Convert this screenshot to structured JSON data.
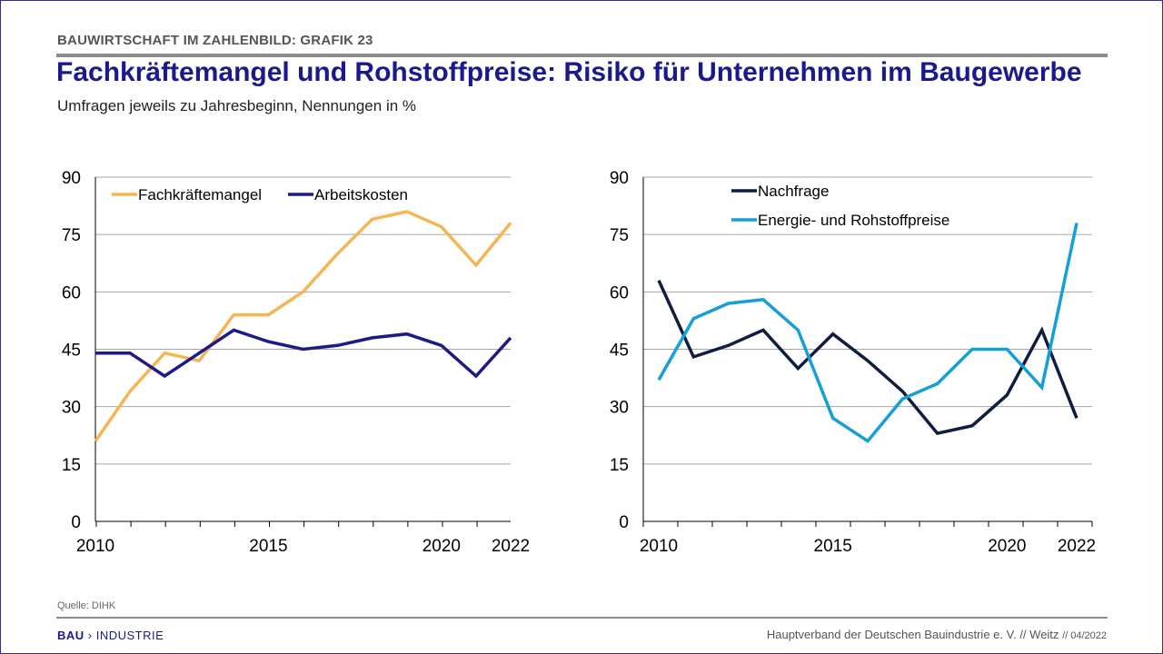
{
  "header": {
    "kicker": "BAUWIRTSCHAFT IM ZAHLENBILD: GRAFIK 23",
    "title": "Fachkräftemangel und Rohstoffpreise: Risiko für Unternehmen im Baugewerbe",
    "subtitle": "Umfragen jeweils zu Jahresbeginn, Nennungen in %"
  },
  "footer": {
    "source": "Quelle: DIHK",
    "logo_bold": "BAU",
    "logo_rest": "INDUSTRIE",
    "publisher": "Hauptverband  der Deutschen Bauindustrie e. V. // Weitz",
    "date": "// 04/2022"
  },
  "colors": {
    "title": "#1a1a8c",
    "fachkraeftemangel": "#f5b553",
    "arbeitskosten": "#1e1989",
    "nachfrage": "#0f1d40",
    "energie": "#169fd6",
    "grid": "#a6a6a6"
  },
  "chart_data": [
    {
      "type": "line",
      "x": [
        2010,
        2011,
        2012,
        2013,
        2014,
        2015,
        2016,
        2017,
        2018,
        2019,
        2020,
        2021,
        2022
      ],
      "x_tick_labels": [
        "2010",
        "2015",
        "2020",
        "2022"
      ],
      "ylim": [
        0,
        90
      ],
      "y_ticks": [
        0,
        15,
        30,
        45,
        60,
        75,
        90
      ],
      "grid": true,
      "legend": "top-left, horizontal",
      "series": [
        {
          "name": "Fachkräftemangel",
          "color": "#f5b553",
          "values": [
            21,
            34,
            44,
            42,
            54,
            54,
            60,
            70,
            79,
            81,
            77,
            67,
            78
          ]
        },
        {
          "name": "Arbeitskosten",
          "color": "#1e1989",
          "values": [
            44,
            44,
            38,
            44,
            50,
            47,
            45,
            46,
            48,
            49,
            46,
            38,
            48
          ]
        }
      ]
    },
    {
      "type": "line",
      "x": [
        2010,
        2011,
        2012,
        2013,
        2014,
        2015,
        2016,
        2017,
        2018,
        2019,
        2020,
        2021,
        2022
      ],
      "x_tick_labels": [
        "2010",
        "2015",
        "2020",
        "2022"
      ],
      "ylim": [
        0,
        90
      ],
      "y_ticks": [
        0,
        15,
        30,
        45,
        60,
        75,
        90
      ],
      "grid": true,
      "legend": "top-left, stacked",
      "series": [
        {
          "name": "Nachfrage",
          "color": "#0f1d40",
          "values": [
            63,
            43,
            46,
            50,
            40,
            49,
            42,
            34,
            23,
            25,
            33,
            50,
            27
          ]
        },
        {
          "name": "Energie- und Rohstoffpreise",
          "color": "#169fd6",
          "values": [
            37,
            53,
            57,
            58,
            50,
            27,
            21,
            32,
            36,
            45,
            45,
            35,
            78
          ]
        }
      ]
    }
  ]
}
